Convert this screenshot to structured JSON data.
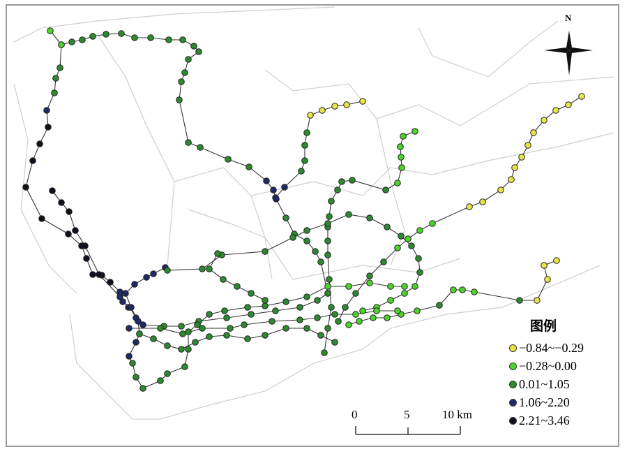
{
  "north_label": "N",
  "legend": {
    "title": "图例",
    "classes": [
      {
        "label": "−0.84~−0.29",
        "color": "#e6e64a"
      },
      {
        "label": "−0.28~0.00",
        "color": "#4cd42a"
      },
      {
        "label": "0.01~1.05",
        "color": "#2e8a30"
      },
      {
        "label": "1.06~2.20",
        "color": "#1f2a66"
      },
      {
        "label": "2.21~3.46",
        "color": "#10101e"
      }
    ]
  },
  "scale_bar": {
    "labels": [
      "0",
      "5",
      "10 km"
    ]
  }
}
